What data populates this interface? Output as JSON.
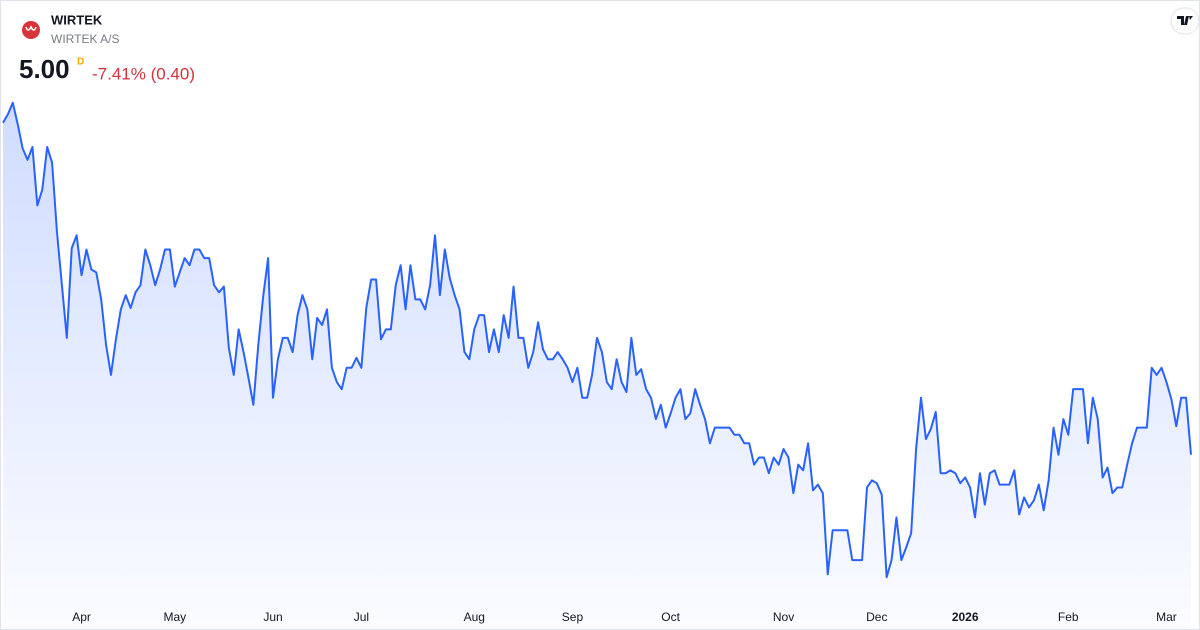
{
  "chart_data": {
    "type": "area",
    "symbol": "WIRTEK",
    "name": "WIRTEK A/S",
    "last": "5.00",
    "interval": "D",
    "change": "-7.41% (0.40)",
    "color": "#2962ff",
    "ylim": [
      3.98,
      7.56
    ],
    "xticks": [
      {
        "value": 16,
        "label": "Apr"
      },
      {
        "value": 35,
        "label": "May"
      },
      {
        "value": 55,
        "label": "Jun"
      },
      {
        "value": 73,
        "label": "Jul"
      },
      {
        "value": 96,
        "label": "Aug"
      },
      {
        "value": 116,
        "label": "Sep"
      },
      {
        "value": 136,
        "label": "Oct"
      },
      {
        "value": 159,
        "label": "Nov"
      },
      {
        "value": 178,
        "label": "Dec"
      },
      {
        "value": 196,
        "label": "2026"
      },
      {
        "value": 217,
        "label": "Feb"
      },
      {
        "value": 237,
        "label": "Mar"
      }
    ],
    "values": [
      7.33,
      7.39,
      7.47,
      7.32,
      7.15,
      7.07,
      7.16,
      6.75,
      6.86,
      7.16,
      7.05,
      6.56,
      6.19,
      5.82,
      6.45,
      6.54,
      6.26,
      6.44,
      6.3,
      6.28,
      6.09,
      5.77,
      5.56,
      5.81,
      6.02,
      6.12,
      6.03,
      6.14,
      6.19,
      6.44,
      6.33,
      6.19,
      6.3,
      6.44,
      6.44,
      6.18,
      6.28,
      6.38,
      6.33,
      6.44,
      6.44,
      6.38,
      6.38,
      6.19,
      6.14,
      6.18,
      5.75,
      5.56,
      5.88,
      5.72,
      5.54,
      5.35,
      5.77,
      6.11,
      6.38,
      5.4,
      5.67,
      5.82,
      5.82,
      5.72,
      5.98,
      6.12,
      6.02,
      5.67,
      5.96,
      5.91,
      6.02,
      5.61,
      5.51,
      5.46,
      5.61,
      5.61,
      5.68,
      5.61,
      6.03,
      6.23,
      6.23,
      5.81,
      5.88,
      5.88,
      6.19,
      6.33,
      6.02,
      6.33,
      6.09,
      6.09,
      6.02,
      6.19,
      6.54,
      6.12,
      6.44,
      6.24,
      6.12,
      6.02,
      5.72,
      5.67,
      5.88,
      5.98,
      5.98,
      5.72,
      5.88,
      5.72,
      5.98,
      5.82,
      6.18,
      5.82,
      5.82,
      5.61,
      5.72,
      5.93,
      5.74,
      5.67,
      5.67,
      5.72,
      5.67,
      5.61,
      5.51,
      5.61,
      5.4,
      5.4,
      5.56,
      5.82,
      5.72,
      5.51,
      5.46,
      5.67,
      5.51,
      5.44,
      5.82,
      5.56,
      5.6,
      5.46,
      5.4,
      5.25,
      5.35,
      5.19,
      5.29,
      5.4,
      5.46,
      5.25,
      5.29,
      5.46,
      5.35,
      5.25,
      5.08,
      5.19,
      5.19,
      5.19,
      5.19,
      5.14,
      5.14,
      5.08,
      5.08,
      4.93,
      4.98,
      4.98,
      4.87,
      4.98,
      4.93,
      5.04,
      4.98,
      4.73,
      4.93,
      4.89,
      5.08,
      4.75,
      4.79,
      4.73,
      4.16,
      4.47,
      4.47,
      4.47,
      4.47,
      4.26,
      4.26,
      4.26,
      4.77,
      4.82,
      4.8,
      4.72,
      4.14,
      4.26,
      4.56,
      4.26,
      4.35,
      4.45,
      5.04,
      5.4,
      5.11,
      5.18,
      5.3,
      4.87,
      4.87,
      4.89,
      4.87,
      4.8,
      4.84,
      4.77,
      4.56,
      4.87,
      4.65,
      4.87,
      4.89,
      4.79,
      4.79,
      4.79,
      4.89,
      4.58,
      4.7,
      4.63,
      4.68,
      4.79,
      4.61,
      4.82,
      5.19,
      5.0,
      5.25,
      5.14,
      5.46,
      5.46,
      5.46,
      5.08,
      5.4,
      5.25,
      4.84,
      4.91,
      4.73,
      4.77,
      4.77,
      4.93,
      5.08,
      5.19,
      5.19,
      5.19,
      5.61,
      5.56,
      5.61,
      5.51,
      5.39,
      5.2,
      5.4,
      5.4,
      5.0
    ]
  }
}
